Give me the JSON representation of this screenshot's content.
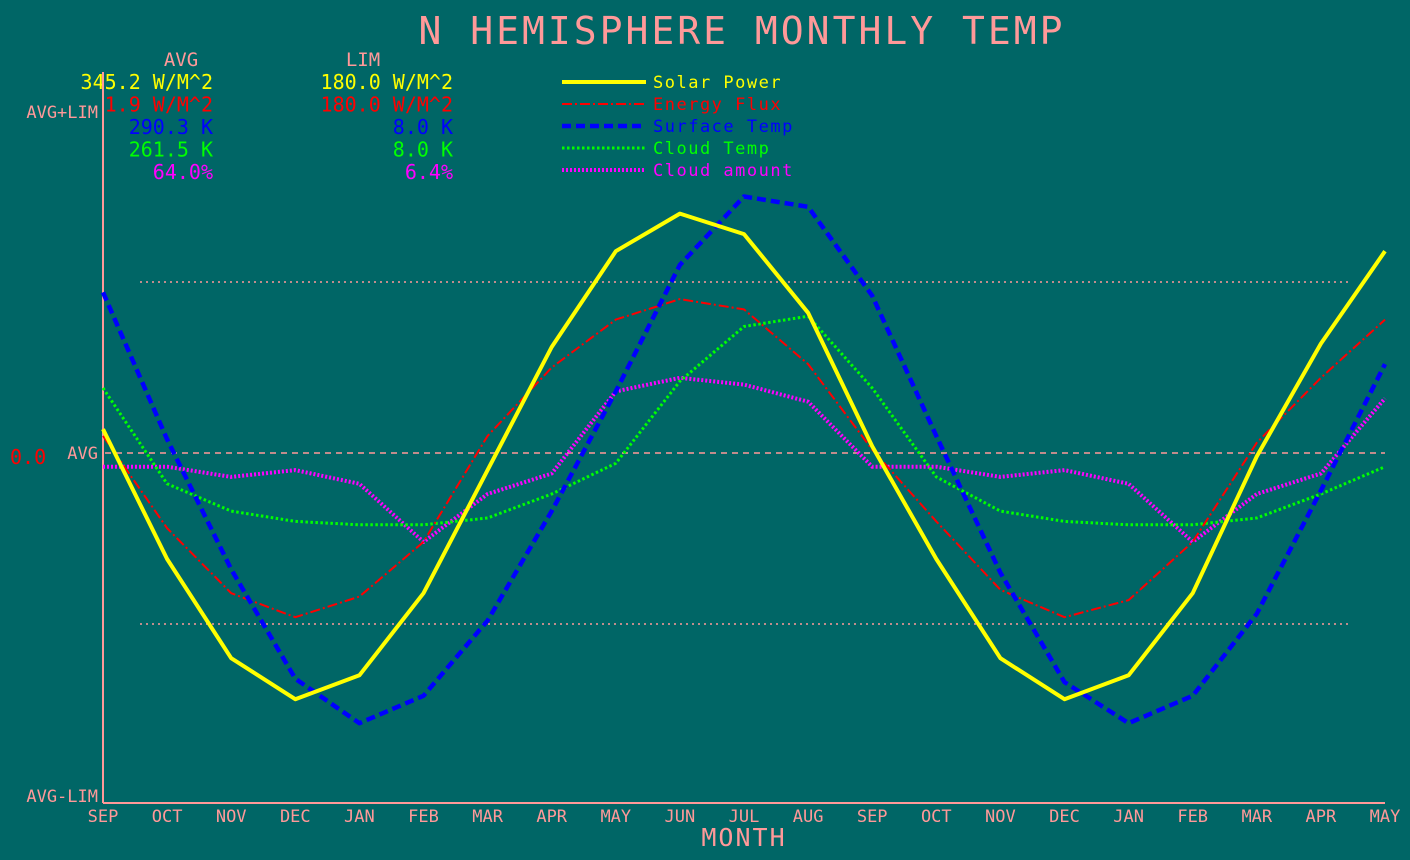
{
  "colors": {
    "background": "#006666",
    "axis": "#ff9999",
    "solar": "#ffff00",
    "energy": "#ff0000",
    "surface": "#0000ff",
    "cloud_temp": "#00ff00",
    "cloud_amount": "#ff00ff"
  },
  "chart_data": {
    "type": "line",
    "title": "N HEMISPHERE MONTHLY TEMP",
    "xlabel": "MONTH",
    "categories": [
      "SEP",
      "OCT",
      "NOV",
      "DEC",
      "JAN",
      "FEB",
      "MAR",
      "APR",
      "MAY",
      "JUN",
      "JUL",
      "AUG",
      "SEP",
      "OCT",
      "NOV",
      "DEC",
      "JAN",
      "FEB",
      "MAR",
      "APR",
      "MAY"
    ],
    "y_axis": {
      "top_label": "AVG+LIM",
      "mid_label": "AVG",
      "bottom_label": "AVG-LIM",
      "zero_label": "0.0",
      "range": [
        -1,
        1
      ],
      "reference_lines": [
        0.5,
        -0.5
      ],
      "zero_line": 0
    },
    "stats_header": {
      "avg": "AVG",
      "lim": "LIM"
    },
    "stats": [
      {
        "avg": "345.2 W/M^2",
        "lim": "180.0 W/M^2",
        "color": "#ffff00"
      },
      {
        "avg": "1.9 W/M^2",
        "lim": "180.0 W/M^2",
        "color": "#ff0000"
      },
      {
        "avg": "290.3 K",
        "lim": "8.0 K",
        "color": "#0000ff"
      },
      {
        "avg": "261.5 K",
        "lim": "8.0 K",
        "color": "#00ff00"
      },
      {
        "avg": "64.0%",
        "lim": "6.4%",
        "color": "#ff00ff"
      }
    ],
    "legend_position": "top-center",
    "series": [
      {
        "name": "Solar Power",
        "color": "#ffff00",
        "style": "solid",
        "values": [
          0.07,
          -0.31,
          -0.6,
          -0.72,
          -0.65,
          -0.41,
          -0.05,
          0.31,
          0.59,
          0.7,
          0.64,
          0.41,
          0.02,
          -0.31,
          -0.6,
          -0.72,
          -0.65,
          -0.41,
          -0.01,
          0.32,
          0.59
        ]
      },
      {
        "name": "Energy Flux",
        "color": "#ff0000",
        "style": "dashdot",
        "values": [
          0.05,
          -0.22,
          -0.41,
          -0.48,
          -0.42,
          -0.26,
          0.05,
          0.25,
          0.39,
          0.45,
          0.42,
          0.26,
          0.01,
          -0.2,
          -0.4,
          -0.48,
          -0.43,
          -0.26,
          0.03,
          0.22,
          0.39
        ]
      },
      {
        "name": "Surface Temp",
        "color": "#0000ff",
        "style": "dashed",
        "values": [
          0.47,
          0.04,
          -0.34,
          -0.66,
          -0.79,
          -0.71,
          -0.49,
          -0.17,
          0.18,
          0.55,
          0.75,
          0.72,
          0.46,
          0.05,
          -0.35,
          -0.67,
          -0.79,
          -0.71,
          -0.47,
          -0.11,
          0.26
        ]
      },
      {
        "name": "Cloud Temp",
        "color": "#00ff00",
        "style": "dotted",
        "values": [
          0.19,
          -0.09,
          -0.17,
          -0.2,
          -0.21,
          -0.21,
          -0.19,
          -0.12,
          -0.03,
          0.21,
          0.37,
          0.4,
          0.19,
          -0.07,
          -0.17,
          -0.2,
          -0.21,
          -0.21,
          -0.19,
          -0.12,
          -0.04
        ]
      },
      {
        "name": "Cloud amount",
        "color": "#ff00ff",
        "style": "dotted-thick",
        "values": [
          -0.04,
          -0.04,
          -0.07,
          -0.05,
          -0.09,
          -0.26,
          -0.12,
          -0.06,
          0.18,
          0.22,
          0.2,
          0.15,
          -0.04,
          -0.04,
          -0.07,
          -0.05,
          -0.09,
          -0.26,
          -0.12,
          -0.06,
          0.16
        ]
      }
    ]
  }
}
